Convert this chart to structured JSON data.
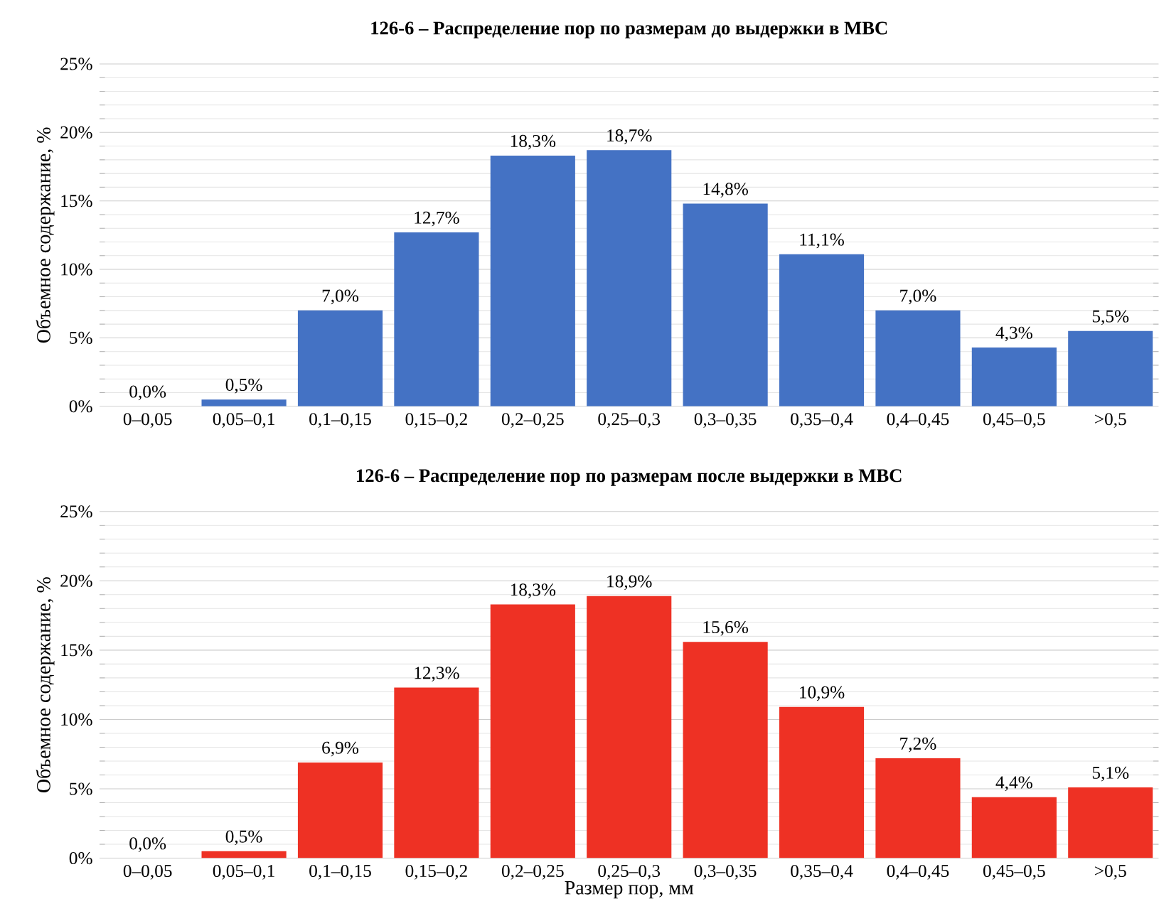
{
  "chart_data": [
    {
      "type": "bar",
      "title": "126-6 – Распределение пор по размерам до выдержки в МВС",
      "ylabel": "Объемное содержание, %",
      "categories": [
        "0–0,05",
        "0,05–0,1",
        "0,1–0,15",
        "0,15–0,2",
        "0,2–0,25",
        "0,25–0,3",
        "0,3–0,35",
        "0,35–0,4",
        "0,4–0,45",
        "0,45–0,5",
        ">0,5"
      ],
      "values": [
        0.0,
        0.5,
        7.0,
        12.7,
        18.3,
        18.7,
        14.8,
        11.1,
        7.0,
        4.3,
        5.5
      ],
      "value_labels": [
        "0,0%",
        "0,5%",
        "7,0%",
        "12,7%",
        "18,3%",
        "18,7%",
        "14,8%",
        "11,1%",
        "7,0%",
        "4,3%",
        "5,5%"
      ],
      "color": "#4472c4",
      "ylim": [
        0,
        25
      ],
      "yticks": [
        {
          "value": 0,
          "label": "0%"
        },
        {
          "value": 5,
          "label": "5%"
        },
        {
          "value": 10,
          "label": "10%"
        },
        {
          "value": 15,
          "label": "15%"
        },
        {
          "value": 20,
          "label": "20%"
        },
        {
          "value": 25,
          "label": "25%"
        }
      ],
      "grid": "y"
    },
    {
      "type": "bar",
      "title": "126-6 – Распределение пор по размерам после выдержки в МВС",
      "ylabel": "Объемное содержание, %",
      "xlabel": "Размер пор, мм",
      "categories": [
        "0–0,05",
        "0,05–0,1",
        "0,1–0,15",
        "0,15–0,2",
        "0,2–0,25",
        "0,25–0,3",
        "0,3–0,35",
        "0,35–0,4",
        "0,4–0,45",
        "0,45–0,5",
        ">0,5"
      ],
      "values": [
        0.0,
        0.5,
        6.9,
        12.3,
        18.3,
        18.9,
        15.6,
        10.9,
        7.2,
        4.4,
        5.1
      ],
      "value_labels": [
        "0,0%",
        "0,5%",
        "6,9%",
        "12,3%",
        "18,3%",
        "18,9%",
        "15,6%",
        "10,9%",
        "7,2%",
        "4,4%",
        "5,1%"
      ],
      "color": "#ee3124",
      "ylim": [
        0,
        25
      ],
      "yticks": [
        {
          "value": 0,
          "label": "0%"
        },
        {
          "value": 5,
          "label": "5%"
        },
        {
          "value": 10,
          "label": "10%"
        },
        {
          "value": 15,
          "label": "15%"
        },
        {
          "value": 20,
          "label": "20%"
        },
        {
          "value": 25,
          "label": "25%"
        }
      ],
      "grid": "y"
    }
  ]
}
